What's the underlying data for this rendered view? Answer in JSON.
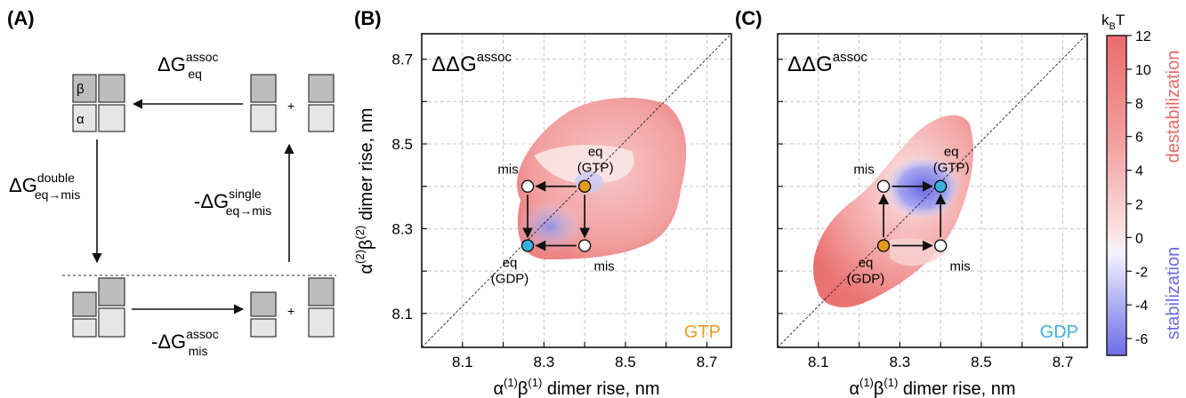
{
  "panels": {
    "A": {
      "label": "(A)",
      "dg_assoc_eq": {
        "base": "ΔG",
        "sup": "assoc",
        "sub": "eq"
      },
      "dg_double": {
        "base": "ΔG",
        "sup": "double",
        "sub": "eq→mis"
      },
      "dg_single": {
        "base": "-ΔG",
        "sup": "single",
        "sub": "eq→mis"
      },
      "dg_assoc_mis": {
        "base": "-ΔG",
        "sup": "assoc",
        "sub": "mis"
      },
      "beta": "β",
      "alpha": "α",
      "plus": "+"
    },
    "B": {
      "label": "(B)",
      "title": "ΔΔG",
      "title_sup": "assoc",
      "corner": "GTP",
      "corner_color": "#e69a1f"
    },
    "C": {
      "label": "(C)",
      "title": "ΔΔG",
      "title_sup": "assoc",
      "corner": "GDP",
      "corner_color": "#3bb0de"
    }
  },
  "axes": {
    "xlabel": {
      "a": "α",
      "sup1": "(1)",
      "b": "β",
      "sup2": "(1)",
      "rest": " dimer rise, nm"
    },
    "ylabel": {
      "a": "α",
      "sup1": "(2)",
      "b": "β",
      "sup2": "(2)",
      "rest": " dimer rise, nm"
    },
    "xticks": [
      "8.1",
      "8.3",
      "8.5",
      "8.7"
    ],
    "yticks": [
      "8.7",
      "8.5",
      "8.3",
      "8.1"
    ]
  },
  "annotations": {
    "B": {
      "mis1": "mis",
      "mis2": "mis",
      "eq_gtp": [
        "eq",
        "(GTP)"
      ],
      "eq_gdp": [
        "eq",
        "(GDP)"
      ]
    },
    "C": {
      "mis1": "mis",
      "mis2": "mis",
      "eq_gtp": [
        "eq",
        "(GTP)"
      ],
      "eq_gdp": [
        "eq",
        "(GDP)"
      ]
    }
  },
  "colorbar": {
    "unit": {
      "base": "k",
      "sub": "B",
      "rest": "T"
    },
    "ticks": [
      "12",
      "10",
      "8",
      "6",
      "4",
      "2",
      "0",
      "-2",
      "-4",
      "-6"
    ],
    "label_top": "destabilization",
    "label_bottom": "stabilization",
    "top_color": "#e86a6a",
    "bottom_color": "#6c6ce8"
  },
  "chart_data": [
    {
      "type": "heatmap",
      "panel": "B",
      "title": "ΔΔG assoc",
      "xlabel": "α(1)β(1) dimer rise, nm",
      "ylabel": "α(2)β(2) dimer rise, nm",
      "xlim": [
        8.0,
        8.76
      ],
      "ylim": [
        8.02,
        8.76
      ],
      "points": [
        {
          "name": "eq (GTP)",
          "x": 8.4,
          "y": 8.4,
          "color": "#e69a1f"
        },
        {
          "name": "mis",
          "x": 8.26,
          "y": 8.4,
          "color": "#ffffff"
        },
        {
          "name": "mis",
          "x": 8.4,
          "y": 8.26,
          "color": "#ffffff"
        },
        {
          "name": "eq (GDP)",
          "x": 8.26,
          "y": 8.26,
          "color": "#3bb0de"
        }
      ],
      "arrows": [
        [
          "eq (GTP)",
          "mis (8.26,8.40)"
        ],
        [
          "eq (GTP)",
          "mis (8.40,8.26)"
        ],
        [
          "mis (8.26,8.40)",
          "eq (GDP)"
        ],
        [
          "mis (8.40,8.26)",
          "eq (GDP)"
        ]
      ],
      "color_range": [
        -7,
        12
      ],
      "unit": "kBT"
    },
    {
      "type": "heatmap",
      "panel": "C",
      "title": "ΔΔG assoc",
      "xlabel": "α(1)β(1) dimer rise, nm",
      "ylabel": "α(2)β(2) dimer rise, nm",
      "xlim": [
        8.0,
        8.76
      ],
      "ylim": [
        8.02,
        8.76
      ],
      "points": [
        {
          "name": "eq (GDP)",
          "x": 8.26,
          "y": 8.26,
          "color": "#e69a1f"
        },
        {
          "name": "mis",
          "x": 8.26,
          "y": 8.4,
          "color": "#ffffff"
        },
        {
          "name": "mis",
          "x": 8.4,
          "y": 8.26,
          "color": "#ffffff"
        },
        {
          "name": "eq (GTP)",
          "x": 8.4,
          "y": 8.4,
          "color": "#3bb0de"
        }
      ],
      "arrows": [
        [
          "eq (GDP)",
          "mis (8.26,8.40)"
        ],
        [
          "eq (GDP)",
          "mis (8.40,8.26)"
        ],
        [
          "mis (8.26,8.40)",
          "eq (GTP)"
        ],
        [
          "mis (8.40,8.26)",
          "eq (GTP)"
        ]
      ],
      "color_range": [
        -7,
        12
      ],
      "unit": "kBT"
    }
  ]
}
